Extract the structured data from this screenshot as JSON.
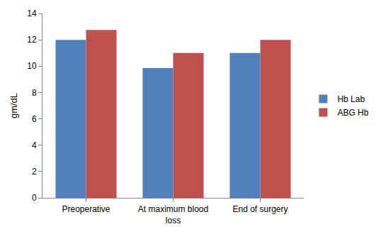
{
  "chart_data": {
    "type": "bar",
    "y_label": "gm/dL",
    "categories": [
      "Preoperative",
      "At maximum blood loss",
      "End of surgery"
    ],
    "series": [
      {
        "name": "Hb Lab",
        "color": "#4f81bd",
        "values": [
          12,
          9.85,
          11
        ]
      },
      {
        "name": "ABG Hb",
        "color": "#c0504d",
        "values": [
          12.75,
          11,
          12
        ]
      }
    ],
    "ylim": [
      0,
      14
    ],
    "yticks": [
      0,
      2,
      4,
      6,
      8,
      10,
      12,
      14
    ],
    "grid": false,
    "legend": "right"
  }
}
